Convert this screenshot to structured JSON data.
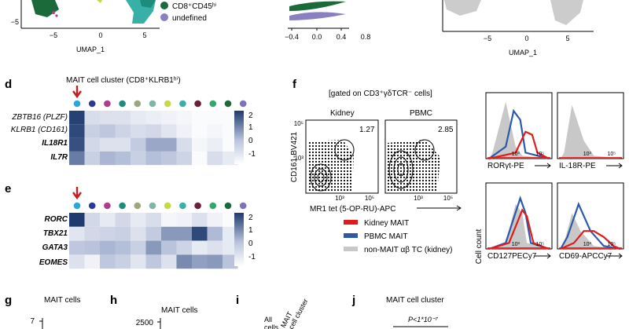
{
  "colors": {
    "kidney": "#e31a1c",
    "pbmc": "#2b5aa8",
    "nonmait": "#c8c8c8",
    "heat_low": "#ffffff",
    "heat_high": "#1f3a6e",
    "cd8": "#1b6b3a",
    "undefined_dot": "#8a7fc0",
    "arrow": "#c41e1e"
  },
  "top": {
    "legend": [
      "CD8⁺CD45ʰⁱ",
      "undefined"
    ],
    "umap_label_left": "UMAP_1",
    "umap_label_right": "UMAP_1",
    "ytick_left": "−5",
    "xticks_left": [
      "−5",
      "0",
      "5"
    ],
    "xticks_mid": [
      "−0.4",
      "0.0",
      "0.4",
      "0.8"
    ],
    "xticks_right": [
      "−5",
      "0",
      "5"
    ]
  },
  "panel_d": {
    "letter": "d",
    "title": "MAIT cell cluster (CD8⁺KLRB1ʰⁱ)",
    "genes": [
      "ZBTB16 (PLZF)",
      "KLRB1 (CD161)",
      "IL18R1",
      "IL7R"
    ],
    "scale": [
      "2",
      "1",
      "0",
      "-1"
    ]
  },
  "panel_e": {
    "letter": "e",
    "genes": [
      "RORC",
      "TBX21",
      "GATA3",
      "EOMES"
    ],
    "scale": [
      "2",
      "1",
      "0",
      "-1"
    ]
  },
  "heat_d": [
    [
      2.2,
      -0.3,
      -0.4,
      -0.4,
      -0.6,
      -0.7,
      -0.8,
      -0.9,
      -1.0,
      -1.0,
      -1.0
    ],
    [
      2.1,
      0.0,
      0.2,
      -0.1,
      -0.3,
      -0.2,
      -0.5,
      -0.8,
      -1.0,
      -0.9,
      -1.0
    ],
    [
      2.0,
      -0.2,
      -0.4,
      -0.4,
      0.1,
      0.8,
      0.8,
      -0.3,
      -0.9,
      -0.7,
      -1.0
    ],
    [
      1.4,
      0.0,
      0.6,
      0.4,
      0.0,
      0.4,
      0.2,
      -0.1,
      -1.0,
      -0.3,
      -0.6
    ]
  ],
  "heat_e": [
    [
      2.3,
      -0.2,
      -0.6,
      -0.2,
      -0.6,
      -0.3,
      -0.9,
      -0.8,
      -0.4,
      -0.8,
      -1.0
    ],
    [
      -0.5,
      -0.2,
      -0.1,
      0.0,
      -0.4,
      0.1,
      1.0,
      1.0,
      2.1,
      0.5,
      -0.6
    ],
    [
      0.2,
      0.3,
      0.6,
      0.4,
      0.0,
      1.0,
      0.3,
      -0.1,
      -0.6,
      -0.4,
      -0.6
    ],
    [
      -0.4,
      -0.8,
      0.2,
      0.0,
      -0.5,
      0.2,
      -0.4,
      1.2,
      0.9,
      1.0,
      0.3
    ]
  ],
  "cluster_dot_colors": [
    "#29a8e0",
    "#2b3a8f",
    "#b03a8c",
    "#1d8c7c",
    "#9aa87a",
    "#7fb6a8",
    "#c6d84a",
    "#38b0a8",
    "#6b1f3a",
    "#2fa86a",
    "#1b6b3a",
    "#7d72b8"
  ],
  "panel_f": {
    "letter": "f",
    "gate": "[gated on CD3⁺γδTCR⁻ cells]",
    "kidney_label": "Kidney",
    "pbmc_label": "PBMC",
    "kidney_pct": "1.27",
    "pbmc_pct": "2.85",
    "ylabel": "CD161-BV421",
    "xlabel": "MR1 tet (5-OP-RU)-APC",
    "ytick_high": "10⁵",
    "ytick_low": "10³",
    "xtick_1": "10³",
    "xtick_2": "10⁵",
    "legend": [
      "Kidney MAIT",
      "PBMC MAIT",
      "non-MAIT αβ TC (kidney)"
    ],
    "cell_count": "Cell count",
    "hist_labels": [
      "RORγt-PE",
      "IL-18R-PE",
      "CD127PECy7",
      "CD69-APCCy7"
    ],
    "hist_tick_a": "10³",
    "hist_tick_b": "10⁵"
  },
  "bottom": {
    "g_letter": "g",
    "g_title": "MAIT cells",
    "g_tick": "7",
    "h_letter": "h",
    "h_title": "MAIT cells",
    "h_tick": "2500",
    "i_letter": "i",
    "i_all": "All",
    "i_cells": "cells",
    "i_mait": "MAIT",
    "i_cluster": "cell cluster",
    "j_letter": "j",
    "j_title": "MAIT cell cluster",
    "j_p": "P<1*10⁻⁷"
  },
  "flow_contour_label": "contour"
}
